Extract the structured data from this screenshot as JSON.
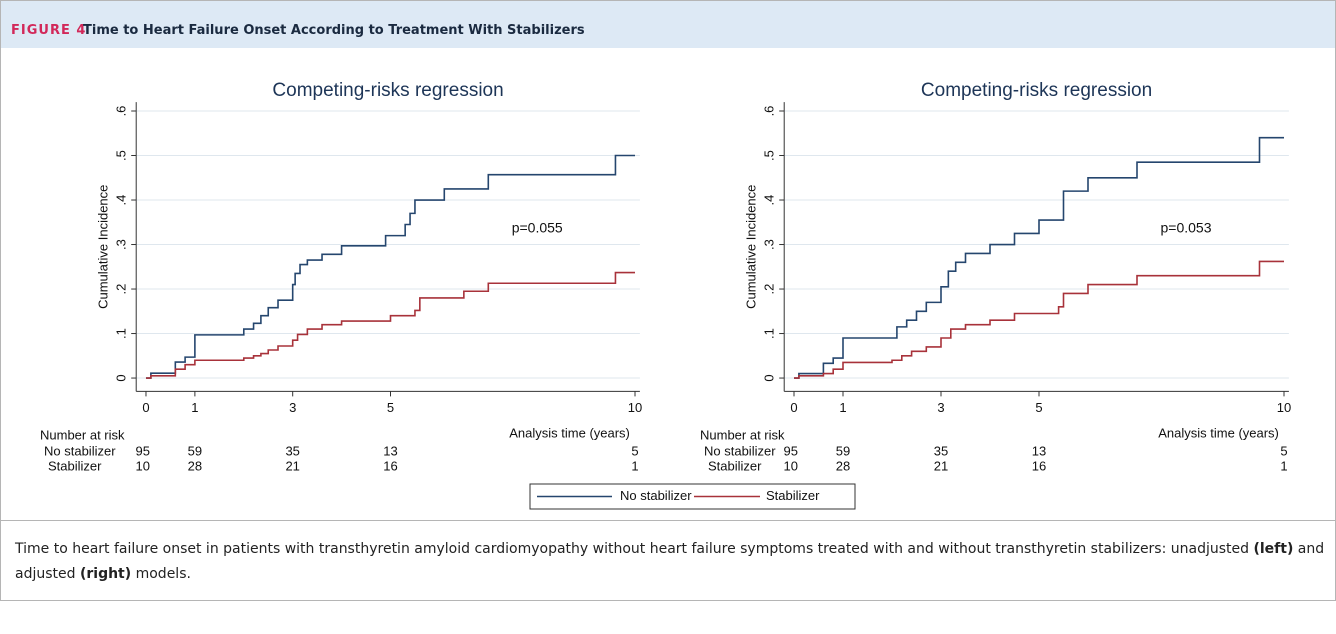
{
  "header": {
    "label": "FIGURE 4",
    "title": "Time to Heart Failure Onset According to Treatment With Stabilizers"
  },
  "chart_data": [
    {
      "type": "line",
      "step": "post",
      "title": "Competing-risks regression",
      "y_label": "Cumulative Incidence",
      "x_label": "Analysis time (years)",
      "annotation": "p=0.055",
      "xlim": [
        -0.2,
        10.1
      ],
      "xticks": [
        0,
        1,
        3,
        5,
        10
      ],
      "ylim": [
        -0.03,
        0.62
      ],
      "yticks": [
        0,
        {
          "value": 0.1,
          "label": ".1"
        },
        {
          "value": 0.2,
          "label": ".2"
        },
        {
          "value": 0.3,
          "label": ".3"
        },
        {
          "value": 0.4,
          "label": ".4"
        },
        {
          "value": 0.5,
          "label": ".5"
        },
        {
          "value": 0.6,
          "label": ".6"
        }
      ],
      "grid": true,
      "series": [
        {
          "color": "#25466e",
          "x": [
            0,
            0.1,
            0.6,
            0.8,
            1.0,
            2.0,
            2.2,
            2.35,
            2.5,
            2.7,
            3.0,
            3.05,
            3.15,
            3.3,
            3.6,
            4.0,
            4.9,
            5.3,
            5.4,
            5.5,
            6.1,
            7.0,
            9.6,
            10.0
          ],
          "values": [
            0,
            0.011,
            0.036,
            0.047,
            0.097,
            0.11,
            0.123,
            0.14,
            0.158,
            0.175,
            0.21,
            0.235,
            0.255,
            0.265,
            0.278,
            0.297,
            0.32,
            0.345,
            0.37,
            0.4,
            0.425,
            0.457,
            0.5,
            0.5
          ]
        },
        {
          "color": "#a8323a",
          "x": [
            0,
            0.1,
            0.6,
            0.8,
            1.0,
            2.0,
            2.2,
            2.35,
            2.5,
            2.7,
            3.0,
            3.1,
            3.3,
            3.6,
            4.0,
            5.0,
            5.5,
            5.6,
            6.5,
            7.0,
            9.6,
            10.0
          ],
          "values": [
            0,
            0.005,
            0.02,
            0.03,
            0.04,
            0.045,
            0.05,
            0.055,
            0.063,
            0.072,
            0.085,
            0.098,
            0.11,
            0.12,
            0.128,
            0.14,
            0.152,
            0.18,
            0.195,
            0.213,
            0.237,
            0.237
          ]
        }
      ],
      "risk_table": {
        "title": "Number at risk",
        "rows": [
          {
            "label": "No stabilizer",
            "values": [
              95,
              59,
              35,
              13,
              5
            ]
          },
          {
            "label": "Stabilizer",
            "values": [
              10,
              28,
              21,
              16,
              1
            ]
          }
        ]
      }
    },
    {
      "type": "line",
      "step": "post",
      "title": "Competing-risks regression",
      "y_label": "Cumulative Incidence",
      "x_label": "Analysis time (years)",
      "annotation": "p=0.053",
      "xlim": [
        -0.2,
        10.1
      ],
      "xticks": [
        0,
        1,
        3,
        5,
        10
      ],
      "ylim": [
        -0.03,
        0.62
      ],
      "yticks": [
        0,
        {
          "value": 0.1,
          "label": ".1"
        },
        {
          "value": 0.2,
          "label": ".2"
        },
        {
          "value": 0.3,
          "label": ".3"
        },
        {
          "value": 0.4,
          "label": ".4"
        },
        {
          "value": 0.5,
          "label": ".5"
        },
        {
          "value": 0.6,
          "label": ".6"
        }
      ],
      "grid": true,
      "series": [
        {
          "color": "#25466e",
          "x": [
            0,
            0.1,
            0.6,
            0.8,
            1.0,
            2.1,
            2.3,
            2.5,
            2.7,
            3.0,
            3.15,
            3.3,
            3.5,
            4.0,
            4.5,
            5.0,
            5.5,
            6.0,
            7.0,
            9.5,
            10.0
          ],
          "values": [
            0,
            0.01,
            0.033,
            0.045,
            0.09,
            0.115,
            0.13,
            0.15,
            0.17,
            0.205,
            0.24,
            0.26,
            0.28,
            0.3,
            0.325,
            0.355,
            0.42,
            0.45,
            0.485,
            0.54,
            0.54
          ]
        },
        {
          "color": "#a8323a",
          "x": [
            0,
            0.1,
            0.6,
            0.8,
            1.0,
            2.0,
            2.2,
            2.4,
            2.7,
            3.0,
            3.2,
            3.5,
            4.0,
            4.5,
            5.4,
            5.5,
            6.0,
            7.0,
            9.5,
            10.0
          ],
          "values": [
            0,
            0.005,
            0.01,
            0.02,
            0.035,
            0.04,
            0.05,
            0.06,
            0.07,
            0.09,
            0.11,
            0.12,
            0.13,
            0.145,
            0.16,
            0.19,
            0.21,
            0.23,
            0.262,
            0.262
          ]
        }
      ],
      "risk_table": {
        "title": "Number at risk",
        "rows": [
          {
            "label": "No stabilizer",
            "values": [
              95,
              59,
              35,
              13,
              5
            ]
          },
          {
            "label": "Stabilizer",
            "values": [
              10,
              28,
              21,
              16,
              1
            ]
          }
        ]
      }
    }
  ],
  "legend": {
    "position": "bottom",
    "entries": [
      "No stabilizer",
      "Stabilizer"
    ]
  },
  "caption": [
    "Time to heart failure onset in patients with transthyretin amyloid cardiomyopathy without heart failure symptoms treated with and without transthyretin stabilizers: unadjusted ",
    "(left)",
    " and adjusted ",
    "(right)",
    " models."
  ]
}
